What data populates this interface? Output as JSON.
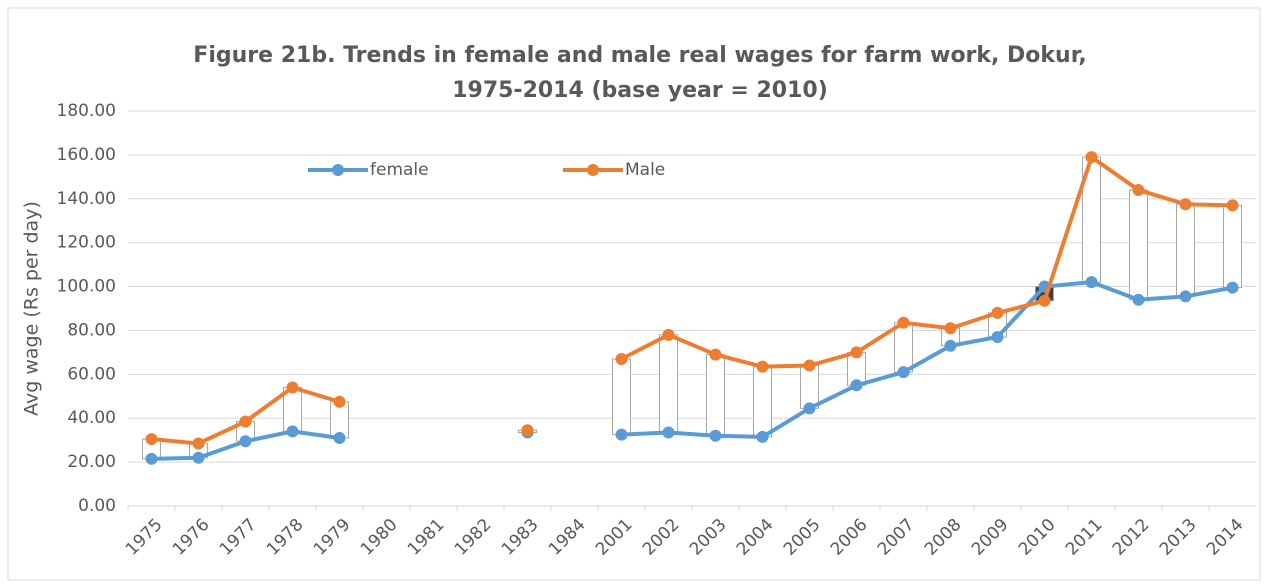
{
  "chart_data": {
    "type": "line",
    "title": [
      "Figure 21b. Trends in female and male real wages for farm work, Dokur,",
      "1975-2014 (base year = 2010)"
    ],
    "ylabel": "Avg wage (Rs per day)",
    "categories": [
      "1975",
      "1976",
      "1977",
      "1978",
      "1979",
      "1980",
      "1981",
      "1982",
      "1983",
      "1984",
      "2001",
      "2002",
      "2003",
      "2004",
      "2005",
      "2006",
      "2007",
      "2008",
      "2009",
      "2010",
      "2011",
      "2012",
      "2013",
      "2014"
    ],
    "series": [
      {
        "name": "female",
        "color": "#5b9bd5",
        "values": [
          21.5,
          22,
          29.5,
          34,
          31,
          null,
          null,
          null,
          33.5,
          null,
          32.5,
          33.5,
          32,
          31.5,
          44.5,
          55,
          61,
          73,
          77,
          100,
          102,
          94,
          95.5,
          99.5
        ]
      },
      {
        "name": "Male",
        "color": "#ed7d31",
        "values": [
          30.5,
          28.5,
          38.5,
          54,
          47.5,
          null,
          null,
          null,
          34.5,
          null,
          67,
          78,
          69,
          63.5,
          64,
          70,
          83.5,
          81,
          88,
          93.5,
          159,
          144,
          137.5,
          137
        ]
      }
    ],
    "up_bar_color": "#ffffff",
    "down_bar_color": "#404040",
    "ylim": [
      0,
      180
    ],
    "yticks": [
      {
        "value": 0,
        "label": "0.00"
      },
      {
        "value": 20,
        "label": "20.00"
      },
      {
        "value": 40,
        "label": "40.00"
      },
      {
        "value": 60,
        "label": "60.00"
      },
      {
        "value": 80,
        "label": "80.00"
      },
      {
        "value": 100,
        "label": "100.00"
      },
      {
        "value": 120,
        "label": "120.00"
      },
      {
        "value": 140,
        "label": "140.00"
      },
      {
        "value": 160,
        "label": "160.00"
      },
      {
        "value": 180,
        "label": "180.00"
      }
    ],
    "grid": true,
    "legend": "top-left"
  }
}
